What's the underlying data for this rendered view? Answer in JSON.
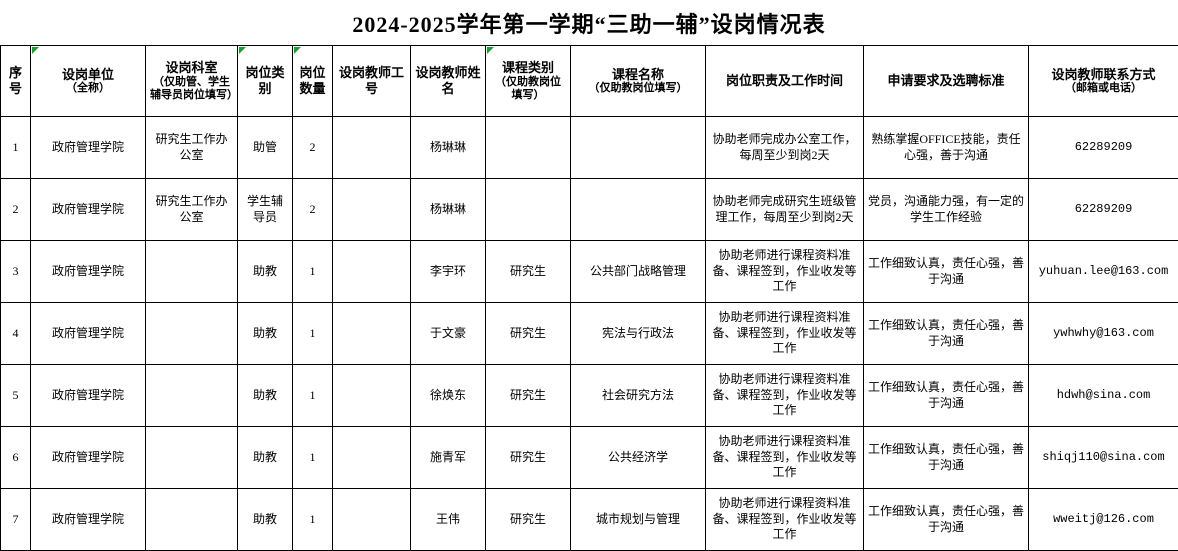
{
  "title": "2024-2025学年第一学期“三助一辅”设岗情况表",
  "colors": {
    "marker_green": "#18a035",
    "border": "#000000",
    "background": "#ffffff",
    "text": "#000000"
  },
  "table": {
    "columns": [
      {
        "key": "idx",
        "label": "序号",
        "note": "",
        "width": 30,
        "marker": false,
        "mono": false
      },
      {
        "key": "unit",
        "label": "设岗单位",
        "note": "（全称）",
        "width": 115,
        "marker": true,
        "mono": false
      },
      {
        "key": "office",
        "label": "设岗科室",
        "note": "（仅助管、学生辅导员岗位填写）",
        "width": 92,
        "marker": false,
        "mono": false
      },
      {
        "key": "post_type",
        "label": "岗位类别",
        "note": "",
        "width": 55,
        "marker": true,
        "mono": false
      },
      {
        "key": "post_count",
        "label": "岗位数量",
        "note": "",
        "width": 40,
        "marker": true,
        "mono": false
      },
      {
        "key": "teacher_id",
        "label": "设岗教师工号",
        "note": "",
        "width": 78,
        "marker": false,
        "mono": false
      },
      {
        "key": "teacher_name",
        "label": "设岗教师姓名",
        "note": "",
        "width": 75,
        "marker": false,
        "mono": false
      },
      {
        "key": "course_type",
        "label": "课程类别",
        "note": "（仅助教岗位填写）",
        "width": 85,
        "marker": true,
        "mono": false
      },
      {
        "key": "course_name",
        "label": "课程名称",
        "note": "（仅助教岗位填写）",
        "width": 135,
        "marker": false,
        "mono": false
      },
      {
        "key": "duties",
        "label": "岗位职责及工作时间",
        "note": "",
        "width": 158,
        "marker": false,
        "mono": false
      },
      {
        "key": "requirements",
        "label": "申请要求及选聘标准",
        "note": "",
        "width": 165,
        "marker": false,
        "mono": false
      },
      {
        "key": "contact",
        "label": "设岗教师联系方式",
        "note": "（邮箱或电话）",
        "width": 150,
        "marker": false,
        "mono": true
      }
    ],
    "rows": [
      {
        "idx": "1",
        "unit": "政府管理学院",
        "office": "研究生工作办公室",
        "post_type": "助管",
        "post_count": "2",
        "teacher_id": "",
        "teacher_name": "杨琳琳",
        "course_type": "",
        "course_name": "",
        "duties": "协助老师完成办公室工作，每周至少到岗2天",
        "requirements": "熟练掌握OFFICE技能，责任心强，善于沟通",
        "contact": "62289209"
      },
      {
        "idx": "2",
        "unit": "政府管理学院",
        "office": "研究生工作办公室",
        "post_type": "学生辅导员",
        "post_count": "2",
        "teacher_id": "",
        "teacher_name": "杨琳琳",
        "course_type": "",
        "course_name": "",
        "duties": "协助老师完成研究生班级管理工作，每周至少到岗2天",
        "requirements": "党员，沟通能力强，有一定的学生工作经验",
        "contact": "62289209"
      },
      {
        "idx": "3",
        "unit": "政府管理学院",
        "office": "",
        "post_type": "助教",
        "post_count": "1",
        "teacher_id": "",
        "teacher_name": "李宇环",
        "course_type": "研究生",
        "course_name": "公共部门战略管理",
        "duties": "协助老师进行课程资料准备、课程签到，作业收发等工作",
        "requirements": "工作细致认真，责任心强，善于沟通",
        "contact": "yuhuan.lee@163.com"
      },
      {
        "idx": "4",
        "unit": "政府管理学院",
        "office": "",
        "post_type": "助教",
        "post_count": "1",
        "teacher_id": "",
        "teacher_name": "于文豪",
        "course_type": "研究生",
        "course_name": "宪法与行政法",
        "duties": "协助老师进行课程资料准备、课程签到，作业收发等工作",
        "requirements": "工作细致认真，责任心强，善于沟通",
        "contact": "ywhwhy@163.com"
      },
      {
        "idx": "5",
        "unit": "政府管理学院",
        "office": "",
        "post_type": "助教",
        "post_count": "1",
        "teacher_id": "",
        "teacher_name": "徐焕东",
        "course_type": "研究生",
        "course_name": "社会研究方法",
        "duties": "协助老师进行课程资料准备、课程签到，作业收发等工作",
        "requirements": "工作细致认真，责任心强，善于沟通",
        "contact": "hdwh@sina.com"
      },
      {
        "idx": "6",
        "unit": "政府管理学院",
        "office": "",
        "post_type": "助教",
        "post_count": "1",
        "teacher_id": "",
        "teacher_name": "施青军",
        "course_type": "研究生",
        "course_name": "公共经济学",
        "duties": "协助老师进行课程资料准备、课程签到，作业收发等工作",
        "requirements": "工作细致认真，责任心强，善于沟通",
        "contact": "shiqj110@sina.com"
      },
      {
        "idx": "7",
        "unit": "政府管理学院",
        "office": "",
        "post_type": "助教",
        "post_count": "1",
        "teacher_id": "",
        "teacher_name": "王伟",
        "course_type": "研究生",
        "course_name": "城市规划与管理",
        "duties": "协助老师进行课程资料准备、课程签到，作业收发等工作",
        "requirements": "工作细致认真，责任心强，善于沟通",
        "contact": "wweitj@126.com"
      }
    ]
  }
}
